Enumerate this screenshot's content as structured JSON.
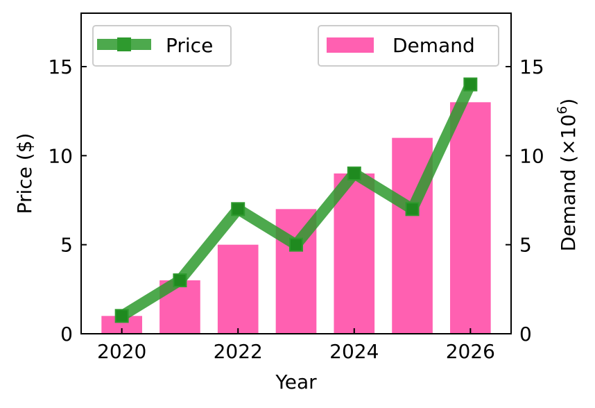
{
  "chart_data": {
    "type": "bar",
    "xlabel": "Year",
    "ylabel_left": "Price ($)",
    "ylabel_right_base": "Demand (×10",
    "ylabel_right_sup": "6",
    "ylabel_right_end": ")",
    "x_ticks": [
      "2020",
      "2022",
      "2024",
      "2026"
    ],
    "y_ticks_left": [
      "0",
      "5",
      "10",
      "15"
    ],
    "y_ticks_right": [
      "0",
      "5",
      "10",
      "15"
    ],
    "xlim": [
      2019.3,
      2026.7
    ],
    "ylim_left": [
      0,
      18
    ],
    "ylim_right": [
      0,
      18
    ],
    "categories": [
      2020,
      2021,
      2022,
      2023,
      2024,
      2025,
      2026
    ],
    "series": [
      {
        "name": "Price",
        "type": "line",
        "axis": "left",
        "color": "#2e9a2e",
        "marker": "square",
        "values": [
          1,
          3,
          7,
          5,
          9,
          7,
          14
        ]
      },
      {
        "name": "Demand",
        "type": "bar",
        "axis": "right",
        "color": "#ff4fa8",
        "values": [
          1,
          3,
          5,
          7,
          9,
          11,
          13
        ]
      }
    ],
    "legend": [
      {
        "label": "Price",
        "placement": "top-left"
      },
      {
        "label": "Demand",
        "placement": "top-right"
      }
    ],
    "grid": false
  }
}
